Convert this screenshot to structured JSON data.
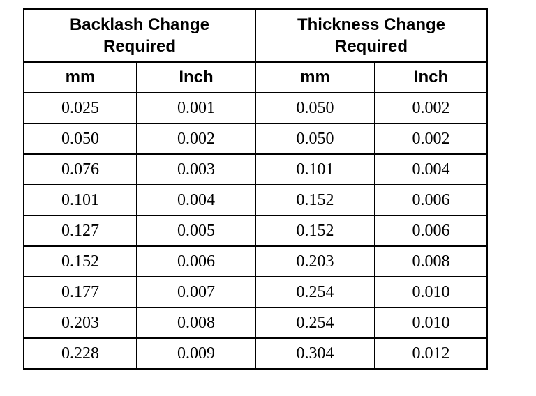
{
  "table": {
    "groups": [
      "Backlash Change Required",
      "Thickness Change Required"
    ],
    "units": [
      "mm",
      "Inch",
      "mm",
      "Inch"
    ],
    "rows": [
      [
        "0.025",
        "0.001",
        "0.050",
        "0.002"
      ],
      [
        "0.050",
        "0.002",
        "0.050",
        "0.002"
      ],
      [
        "0.076",
        "0.003",
        "0.101",
        "0.004"
      ],
      [
        "0.101",
        "0.004",
        "0.152",
        "0.006"
      ],
      [
        "0.127",
        "0.005",
        "0.152",
        "0.006"
      ],
      [
        "0.152",
        "0.006",
        "0.203",
        "0.008"
      ],
      [
        "0.177",
        "0.007",
        "0.254",
        "0.010"
      ],
      [
        "0.203",
        "0.008",
        "0.254",
        "0.010"
      ],
      [
        "0.228",
        "0.009",
        "0.304",
        "0.012"
      ]
    ]
  }
}
